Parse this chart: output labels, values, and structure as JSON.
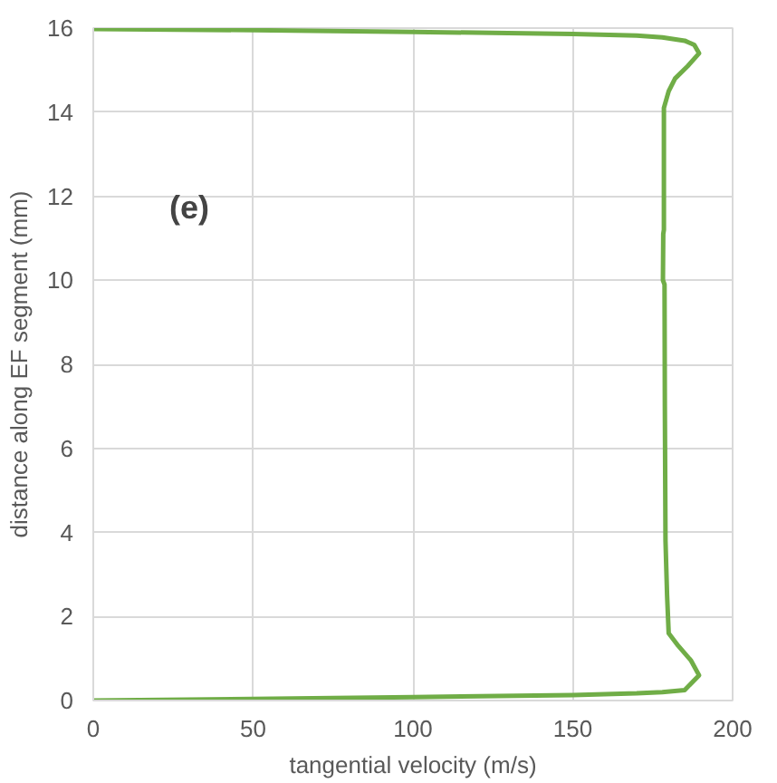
{
  "chart_data": {
    "type": "line",
    "xlabel": "tangential velocity (m/s)",
    "ylabel": "distance along EF segment (mm)",
    "annotations": [
      "(e)"
    ],
    "series": [
      {
        "color": "#70ad47",
        "x": [
          0,
          50,
          100,
          150,
          170,
          178,
          185,
          189.5,
          187,
          183,
          180,
          179.5,
          179,
          178.8,
          178.7,
          178.2,
          178.3,
          178.5,
          178.5,
          180,
          182,
          186,
          189.5,
          188,
          185,
          178,
          170,
          150,
          100,
          50,
          0
        ],
        "values": [
          0,
          0.04,
          0.08,
          0.13,
          0.17,
          0.2,
          0.25,
          0.6,
          0.95,
          1.3,
          1.6,
          2.5,
          3.8,
          7,
          9.9,
          10,
          11.1,
          11.2,
          14.1,
          14.5,
          14.8,
          15.1,
          15.4,
          15.6,
          15.7,
          15.78,
          15.82,
          15.86,
          15.91,
          15.95,
          15.98
        ]
      }
    ],
    "xlim": [
      0,
      200
    ],
    "ylim": [
      0,
      16
    ],
    "xticks": [
      0,
      50,
      100,
      150,
      200
    ],
    "yticks": [
      0,
      2,
      4,
      6,
      8,
      10,
      12,
      14,
      16
    ],
    "grid": true,
    "line_style": "solid"
  }
}
